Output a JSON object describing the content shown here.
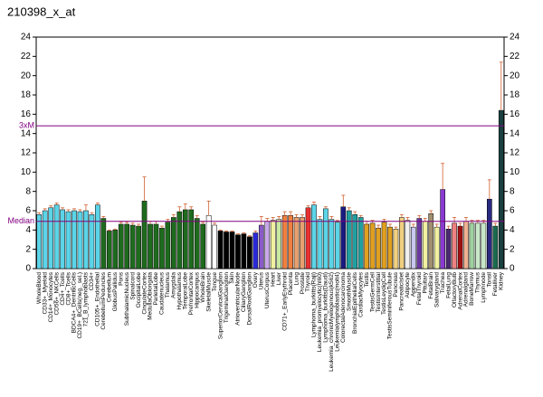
{
  "chart_data": {
    "type": "bar",
    "title": "210398_x_at",
    "categories": [
      "WholeBlood",
      "CD33+_Myeloid",
      "CD14+_Monocytes",
      "CD56+_NKCells",
      "CD4+_Tcells",
      "CD8+_Tcells",
      "BDCA4+_DentriticCells",
      "CD19+_BCells(neg._sel.)",
      "721_B_lymphoblasts",
      "CD34+",
      "CD105+_Endothelial",
      "CerebellumPeduncles",
      "Cerebellum",
      "GlobusPallidus",
      "Pons",
      "SubthalamicNucleus",
      "Spinalcord",
      "OccipitalLobe",
      "CingulateCortex",
      "MedullaOblongata",
      "ParietalLobe",
      "Caudatenucleus",
      "Thalamus",
      "Amygdala",
      "Hypothalamus",
      "TemporalLobe",
      "PrefrontalCortex",
      "Hippocampus",
      "WholeBrain",
      "SkeletalMuscle",
      "Tongue",
      "SuperiorCervicalGanglion",
      "TrigeminalGanglion",
      "Skin",
      "AtrioventricularNode",
      "CiliaryGanglion",
      "DorsalRootGanglion",
      "Ovary",
      "Uterus",
      "UterusCorpus",
      "Heart",
      "Liver",
      "CD71+_EarlyErythroid",
      "Placenta",
      "Lung",
      "Prostate",
      "Thyroid",
      "Lymphoma_burkitts(Raji)",
      "Leukemia_promyelocytic(hl60)",
      "Lymphoma_burkitts(Daudi)",
      "Leukemia_chronicMyelogenous(k562)",
      "Leukemialymphoblastic(molt4)",
      "ColorectalAdenocarcinoma",
      "SmoothMuscle",
      "BronchialEpithelialCells",
      "CardiacMyocytes",
      "Testis",
      "TestisGermCell",
      "TestisInterstitial",
      "TestisLeydigCell",
      "TestisSeminiferousTubule",
      "Pancreas",
      "PancreaticIslet",
      "Adipocyte",
      "Appendix",
      "FetalThyroid",
      "Pituitary",
      "FetalBrain",
      "Salivarygland",
      "Trachea",
      "FetalLung",
      "OlfactoryBulb",
      "AdrenalCortex",
      "Adrenalgland",
      "BoneMarrow",
      "Thymus",
      "Lymphnode",
      "Tonsil",
      "Fetalliver",
      "Kidney"
    ],
    "values": [
      5.6,
      6.0,
      6.3,
      6.6,
      6.1,
      5.9,
      6.0,
      5.9,
      6.0,
      5.6,
      6.6,
      5.2,
      3.9,
      4.0,
      4.6,
      4.6,
      4.5,
      4.4,
      7.0,
      4.6,
      4.6,
      4.2,
      4.8,
      5.3,
      5.9,
      6.1,
      6.1,
      5.2,
      4.6,
      5.5,
      4.5,
      3.9,
      3.8,
      3.8,
      3.5,
      3.6,
      3.3,
      3.7,
      4.5,
      4.9,
      5.0,
      5.1,
      5.5,
      5.5,
      5.3,
      5.3,
      6.3,
      6.6,
      5.1,
      6.2,
      5.1,
      4.8,
      6.4,
      6.0,
      5.6,
      5.3,
      4.6,
      4.7,
      4.2,
      4.8,
      4.3,
      4.1,
      5.3,
      5.0,
      4.3,
      5.2,
      4.9,
      5.7,
      4.3,
      8.2,
      4.1,
      4.7,
      4.4,
      4.9,
      4.7,
      4.7,
      4.7,
      7.2,
      4.4,
      16.4
    ],
    "errors": [
      0.2,
      0.2,
      0.2,
      0.2,
      0.2,
      0.2,
      0.2,
      0.2,
      0.6,
      0.2,
      0.2,
      0.2,
      0.1,
      0.1,
      0.2,
      0.2,
      0.2,
      0.2,
      2.5,
      0.3,
      0.3,
      0.2,
      0.3,
      0.3,
      0.5,
      0.6,
      0.3,
      0.3,
      0.2,
      1.5,
      0.2,
      0.1,
      0.1,
      0.1,
      0.1,
      0.1,
      0.1,
      0.2,
      0.9,
      0.3,
      0.3,
      0.3,
      0.4,
      0.4,
      0.3,
      0.3,
      0.2,
      0.3,
      0.3,
      0.2,
      0.3,
      0.2,
      1.2,
      0.3,
      0.3,
      0.2,
      0.3,
      0.3,
      0.3,
      0.3,
      0.3,
      0.2,
      0.3,
      0.3,
      0.3,
      0.3,
      0.3,
      0.3,
      0.3,
      2.7,
      0.3,
      0.6,
      0.3,
      0.4,
      0.3,
      0.3,
      0.3,
      2.0,
      0.3,
      5.0
    ],
    "colors": [
      "#5bd4e8",
      "#5bd4e8",
      "#5bd4e8",
      "#5bd4e8",
      "#5bd4e8",
      "#5bd4e8",
      "#5bd4e8",
      "#5bd4e8",
      "#5bd4e8",
      "#5bd4e8",
      "#5bd4e8",
      "#1e6b1e",
      "#1e6b1e",
      "#1e6b1e",
      "#1e6b1e",
      "#1e6b1e",
      "#1e6b1e",
      "#1e6b1e",
      "#1e6b1e",
      "#1e6b1e",
      "#1e6b1e",
      "#1e6b1e",
      "#1e6b1e",
      "#1e6b1e",
      "#1e6b1e",
      "#1e6b1e",
      "#1e6b1e",
      "#1e6b1e",
      "#1e6b1e",
      "#ffffff",
      "#ffffff",
      "#000000",
      "#000000",
      "#000000",
      "#000000",
      "#000000",
      "#000000",
      "#2a2ad8",
      "#8a5ac8",
      "#c8a8e8",
      "#f0f0a0",
      "#c8e8a0",
      "#f08040",
      "#f08040",
      "#e8a070",
      "#e8a070",
      "#e83030",
      "#5bd4e8",
      "#5bd4e8",
      "#5bd4e8",
      "#5bd4e8",
      "#5bd4e8",
      "#1a1a80",
      "#20a0a0",
      "#20a0a0",
      "#20a0a0",
      "#e0a020",
      "#e0a020",
      "#e0a020",
      "#e0a020",
      "#e0a020",
      "#f0d080",
      "#f0d080",
      "#f0f0f0",
      "#c8c8f0",
      "#6a3aa0",
      "#f0f0a0",
      "#a09070",
      "#f0f0a0",
      "#8a3ad0",
      "#4a2a70",
      "#f08080",
      "#a01010",
      "#f0b090",
      "#a0d0a0",
      "#c8e8c8",
      "#c8e8c8",
      "#2a2a80",
      "#1a6a50",
      "#1a4040"
    ],
    "annotations": [
      {
        "label": "3xM",
        "value": 14.8
      },
      {
        "label": "Median",
        "value": 4.9
      }
    ],
    "ylim": [
      0,
      24
    ],
    "yticks": [
      0,
      2,
      4,
      6,
      8,
      10,
      12,
      14,
      16,
      18,
      20,
      22,
      24
    ],
    "y2lim": [
      0,
      24
    ],
    "y2ticks": [
      0,
      2,
      4,
      6,
      8,
      10,
      12,
      14,
      16,
      18,
      20,
      22,
      24
    ]
  }
}
